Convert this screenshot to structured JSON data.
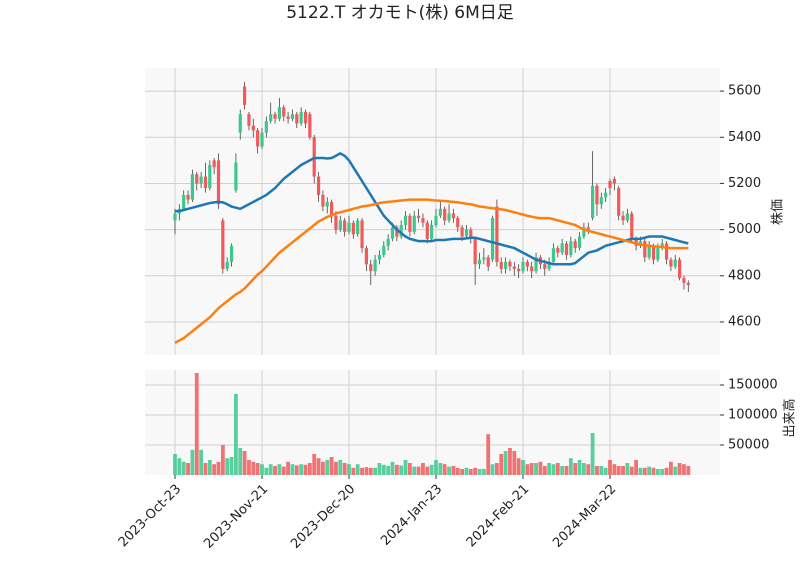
{
  "chart_data": {
    "type": "candlestick",
    "title": "5122.T オカモト(株) 6M日足",
    "y_label": "株価",
    "categories": [
      "2023-Oct-23",
      null,
      null,
      null,
      null,
      null,
      null,
      null,
      null,
      null,
      null,
      null,
      null,
      null,
      null,
      null,
      null,
      null,
      null,
      null,
      "2023-Nov-21",
      null,
      null,
      null,
      null,
      null,
      null,
      null,
      null,
      null,
      null,
      null,
      null,
      null,
      null,
      null,
      null,
      null,
      null,
      null,
      "2023-Dec-20",
      null,
      null,
      null,
      null,
      null,
      null,
      null,
      null,
      null,
      null,
      null,
      null,
      null,
      null,
      null,
      null,
      null,
      null,
      null,
      "2024-Jan-23",
      null,
      null,
      null,
      null,
      null,
      null,
      null,
      null,
      null,
      null,
      null,
      null,
      null,
      null,
      null,
      null,
      null,
      null,
      null,
      "2024-Feb-21",
      null,
      null,
      null,
      null,
      null,
      null,
      null,
      null,
      null,
      null,
      null,
      null,
      null,
      null,
      null,
      null,
      null,
      null,
      null,
      "2024-Mar-22",
      null,
      null,
      null,
      null,
      null,
      null,
      null,
      null,
      null,
      null,
      null,
      null,
      null,
      null,
      null,
      null,
      null,
      null
    ],
    "open": [
      5040,
      5070,
      5090,
      5150,
      5130,
      5240,
      5200,
      5230,
      5180,
      5300,
      5300,
      5040,
      4830,
      4860,
      5170,
      5420,
      5620,
      5500,
      5450,
      5430,
      5360,
      5420,
      5470,
      5500,
      5480,
      5530,
      5490,
      5480,
      5500,
      5460,
      5510,
      5500,
      5400,
      5230,
      5150,
      5100,
      5120,
      5060,
      5000,
      5040,
      4990,
      5030,
      4980,
      5040,
      4920,
      4850,
      4820,
      4870,
      4890,
      4930,
      4960,
      5010,
      4970,
      5020,
      5060,
      4990,
      5060,
      5050,
      5030,
      4960,
      5020,
      5060,
      5090,
      5040,
      5070,
      5050,
      5010,
      4970,
      5000,
      4960,
      4850,
      4870,
      4880,
      4870,
      5100,
      4860,
      4830,
      4860,
      4840,
      4830,
      4820,
      4860,
      4840,
      4820,
      4880,
      4850,
      4830,
      4860,
      4920,
      4900,
      4940,
      4890,
      4950,
      4920,
      4970,
      5010,
      5050,
      5190,
      5110,
      5140,
      5210,
      5220,
      5180,
      5060,
      5040,
      5070,
      4960,
      4930,
      4950,
      4880,
      4930,
      4870,
      4920,
      4940,
      4870,
      4840,
      4870,
      4790,
      4770
    ],
    "high": [
      5090,
      5110,
      5170,
      5170,
      5260,
      5250,
      5250,
      5290,
      5300,
      5310,
      5330,
      5050,
      4880,
      4940,
      5330,
      5520,
      5640,
      5510,
      5480,
      5440,
      5440,
      5490,
      5550,
      5510,
      5570,
      5540,
      5510,
      5520,
      5510,
      5530,
      5520,
      5510,
      5410,
      5250,
      5170,
      5140,
      5130,
      5080,
      5060,
      5050,
      5060,
      5040,
      5050,
      5050,
      4930,
      4870,
      4890,
      4910,
      4950,
      4980,
      5030,
      5020,
      5040,
      5080,
      5070,
      5080,
      5090,
      5070,
      5040,
      5040,
      5090,
      5120,
      5100,
      5110,
      5090,
      5060,
      5020,
      5020,
      5010,
      4970,
      4900,
      4920,
      4890,
      5060,
      5130,
      4880,
      4880,
      4870,
      4860,
      4850,
      4880,
      4870,
      4860,
      4900,
      4890,
      4870,
      4880,
      4940,
      4930,
      4960,
      4950,
      4970,
      4960,
      4990,
      5030,
      5030,
      5340,
      5200,
      5160,
      5180,
      5220,
      5230,
      5190,
      5080,
      5090,
      5080,
      4970,
      4970,
      4960,
      4950,
      4940,
      4940,
      4960,
      4950,
      4880,
      4890,
      4880,
      4800,
      4780
    ],
    "low": [
      4980,
      5040,
      5080,
      5110,
      5120,
      5170,
      5180,
      5160,
      5170,
      5240,
      5090,
      4810,
      4820,
      4840,
      5160,
      5390,
      5520,
      5430,
      5400,
      5330,
      5350,
      5400,
      5460,
      5460,
      5470,
      5470,
      5460,
      5470,
      5440,
      5450,
      5440,
      5390,
      5200,
      5120,
      5080,
      5070,
      5030,
      4980,
      4990,
      4970,
      4980,
      4960,
      4970,
      4900,
      4820,
      4760,
      4800,
      4850,
      4880,
      4910,
      4950,
      4950,
      4960,
      5000,
      4970,
      4980,
      5030,
      5010,
      4940,
      4950,
      5010,
      5050,
      5020,
      5030,
      5030,
      4990,
      4950,
      4960,
      4940,
      4760,
      4830,
      4850,
      4820,
      4860,
      4840,
      4810,
      4810,
      4820,
      4800,
      4790,
      4810,
      4820,
      4790,
      4810,
      4830,
      4800,
      4820,
      4850,
      4880,
      4890,
      4870,
      4880,
      4900,
      4910,
      4960,
      4980,
      5040,
      5060,
      5090,
      5120,
      5150,
      5170,
      5040,
      5020,
      5030,
      4940,
      4910,
      4920,
      4860,
      4870,
      4850,
      4860,
      4910,
      4850,
      4820,
      4830,
      4780,
      4740,
      4730
    ],
    "close": [
      5070,
      5090,
      5150,
      5130,
      5240,
      5200,
      5230,
      5180,
      5280,
      5270,
      5110,
      4830,
      4860,
      4930,
      5290,
      5500,
      5540,
      5450,
      5430,
      5360,
      5420,
      5470,
      5500,
      5480,
      5530,
      5490,
      5480,
      5500,
      5460,
      5510,
      5460,
      5400,
      5230,
      5150,
      5100,
      5120,
      5060,
      5000,
      5040,
      4990,
      5030,
      4980,
      5040,
      4920,
      4850,
      4820,
      4870,
      4890,
      4930,
      4960,
      5010,
      4970,
      5020,
      5060,
      4990,
      5060,
      5050,
      5030,
      4960,
      5020,
      5060,
      5090,
      5040,
      5070,
      5050,
      5010,
      4970,
      5000,
      4960,
      4850,
      4870,
      4880,
      4840,
      5050,
      4860,
      4830,
      4860,
      4840,
      4830,
      4820,
      4860,
      4840,
      4820,
      4880,
      4850,
      4830,
      4860,
      4920,
      4900,
      4940,
      4890,
      4950,
      4920,
      4970,
      5010,
      5000,
      5190,
      5110,
      5140,
      5160,
      5180,
      5200,
      5060,
      5040,
      5070,
      4960,
      4930,
      4950,
      4880,
      4930,
      4870,
      4920,
      4940,
      4870,
      4840,
      4870,
      4790,
      4770,
      4760
    ],
    "up_color": "#3cc88c",
    "down_color": "#f05a5a",
    "ylim": [
      4457,
      5700
    ],
    "yticks": [
      4600,
      4800,
      5000,
      5200,
      5400,
      5600
    ],
    "grid": true,
    "moving_averages": [
      {
        "color": "#1f77b4",
        "values": [
          5080,
          5080,
          5085,
          5090,
          5095,
          5100,
          5105,
          5110,
          5115,
          5118,
          5120,
          5118,
          5110,
          5100,
          5095,
          5090,
          5100,
          5110,
          5120,
          5130,
          5140,
          5150,
          5165,
          5180,
          5200,
          5220,
          5235,
          5250,
          5265,
          5280,
          5290,
          5300,
          5310,
          5310,
          5310,
          5308,
          5310,
          5320,
          5330,
          5320,
          5300,
          5270,
          5240,
          5210,
          5180,
          5150,
          5120,
          5090,
          5060,
          5040,
          5020,
          5000,
          4985,
          4970,
          4960,
          4955,
          4950,
          4950,
          4950,
          4950,
          4955,
          4955,
          4955,
          4958,
          4960,
          4960,
          4960,
          4962,
          4965,
          4965,
          4960,
          4955,
          4950,
          4945,
          4940,
          4935,
          4930,
          4925,
          4920,
          4910,
          4900,
          4890,
          4880,
          4870,
          4865,
          4860,
          4855,
          4850,
          4850,
          4850,
          4850,
          4850,
          4855,
          4870,
          4885,
          4900,
          4905,
          4910,
          4920,
          4930,
          4935,
          4940,
          4945,
          4950,
          4955,
          4960,
          4960,
          4960,
          4965,
          4970,
          4970,
          4970,
          4970,
          4965,
          4960,
          4955,
          4950,
          4945,
          4940
        ]
      },
      {
        "color": "#ff7f0e",
        "values": [
          4510,
          4520,
          4530,
          4545,
          4560,
          4575,
          4590,
          4605,
          4620,
          4640,
          4660,
          4675,
          4690,
          4705,
          4720,
          4730,
          4745,
          4765,
          4785,
          4805,
          4820,
          4840,
          4860,
          4880,
          4900,
          4915,
          4930,
          4945,
          4960,
          4975,
          4990,
          5005,
          5020,
          5035,
          5045,
          5055,
          5062,
          5070,
          5075,
          5080,
          5085,
          5090,
          5095,
          5100,
          5103,
          5106,
          5110,
          5115,
          5118,
          5120,
          5122,
          5124,
          5126,
          5128,
          5130,
          5130,
          5130,
          5130,
          5130,
          5128,
          5126,
          5125,
          5124,
          5122,
          5120,
          5118,
          5115,
          5112,
          5110,
          5105,
          5100,
          5098,
          5095,
          5093,
          5090,
          5088,
          5085,
          5080,
          5075,
          5070,
          5065,
          5060,
          5056,
          5052,
          5050,
          5050,
          5050,
          5045,
          5040,
          5035,
          5030,
          5025,
          5020,
          5010,
          5000,
          4995,
          4990,
          4985,
          4980,
          4975,
          4970,
          4965,
          4960,
          4955,
          4950,
          4945,
          4940,
          4935,
          4932,
          4930,
          4928,
          4926,
          4924,
          4922,
          4920,
          4920,
          4920,
          4920,
          4920
        ]
      }
    ],
    "volume": {
      "y_label": "出来高",
      "ylim": [
        0,
        175000
      ],
      "yticks": [
        50000,
        100000,
        150000
      ],
      "values": [
        35000,
        28000,
        22000,
        20000,
        42000,
        170000,
        42000,
        20000,
        25000,
        18000,
        22000,
        50000,
        28000,
        30000,
        135000,
        45000,
        40000,
        25000,
        22000,
        20000,
        18000,
        12000,
        18000,
        15000,
        18000,
        14000,
        22000,
        18000,
        16000,
        18000,
        17000,
        20000,
        35000,
        28000,
        22000,
        25000,
        30000,
        22000,
        25000,
        20000,
        18000,
        12000,
        18000,
        12000,
        13000,
        12000,
        12000,
        20000,
        17000,
        15000,
        22000,
        17000,
        16000,
        25000,
        20000,
        14000,
        14000,
        20000,
        14000,
        17000,
        25000,
        20000,
        18000,
        14000,
        15000,
        12000,
        10000,
        12000,
        10000,
        12000,
        10000,
        10000,
        68000,
        18000,
        20000,
        35000,
        40000,
        45000,
        40000,
        28000,
        25000,
        18000,
        20000,
        20000,
        22000,
        15000,
        20000,
        18000,
        20000,
        15000,
        15000,
        28000,
        20000,
        25000,
        20000,
        18000,
        70000,
        15000,
        15000,
        12000,
        25000,
        18000,
        15000,
        15000,
        20000,
        14000,
        25000,
        12000,
        12000,
        14000,
        12000,
        10000,
        10000,
        12000,
        22000,
        14000,
        20000,
        18000,
        15000
      ]
    }
  }
}
